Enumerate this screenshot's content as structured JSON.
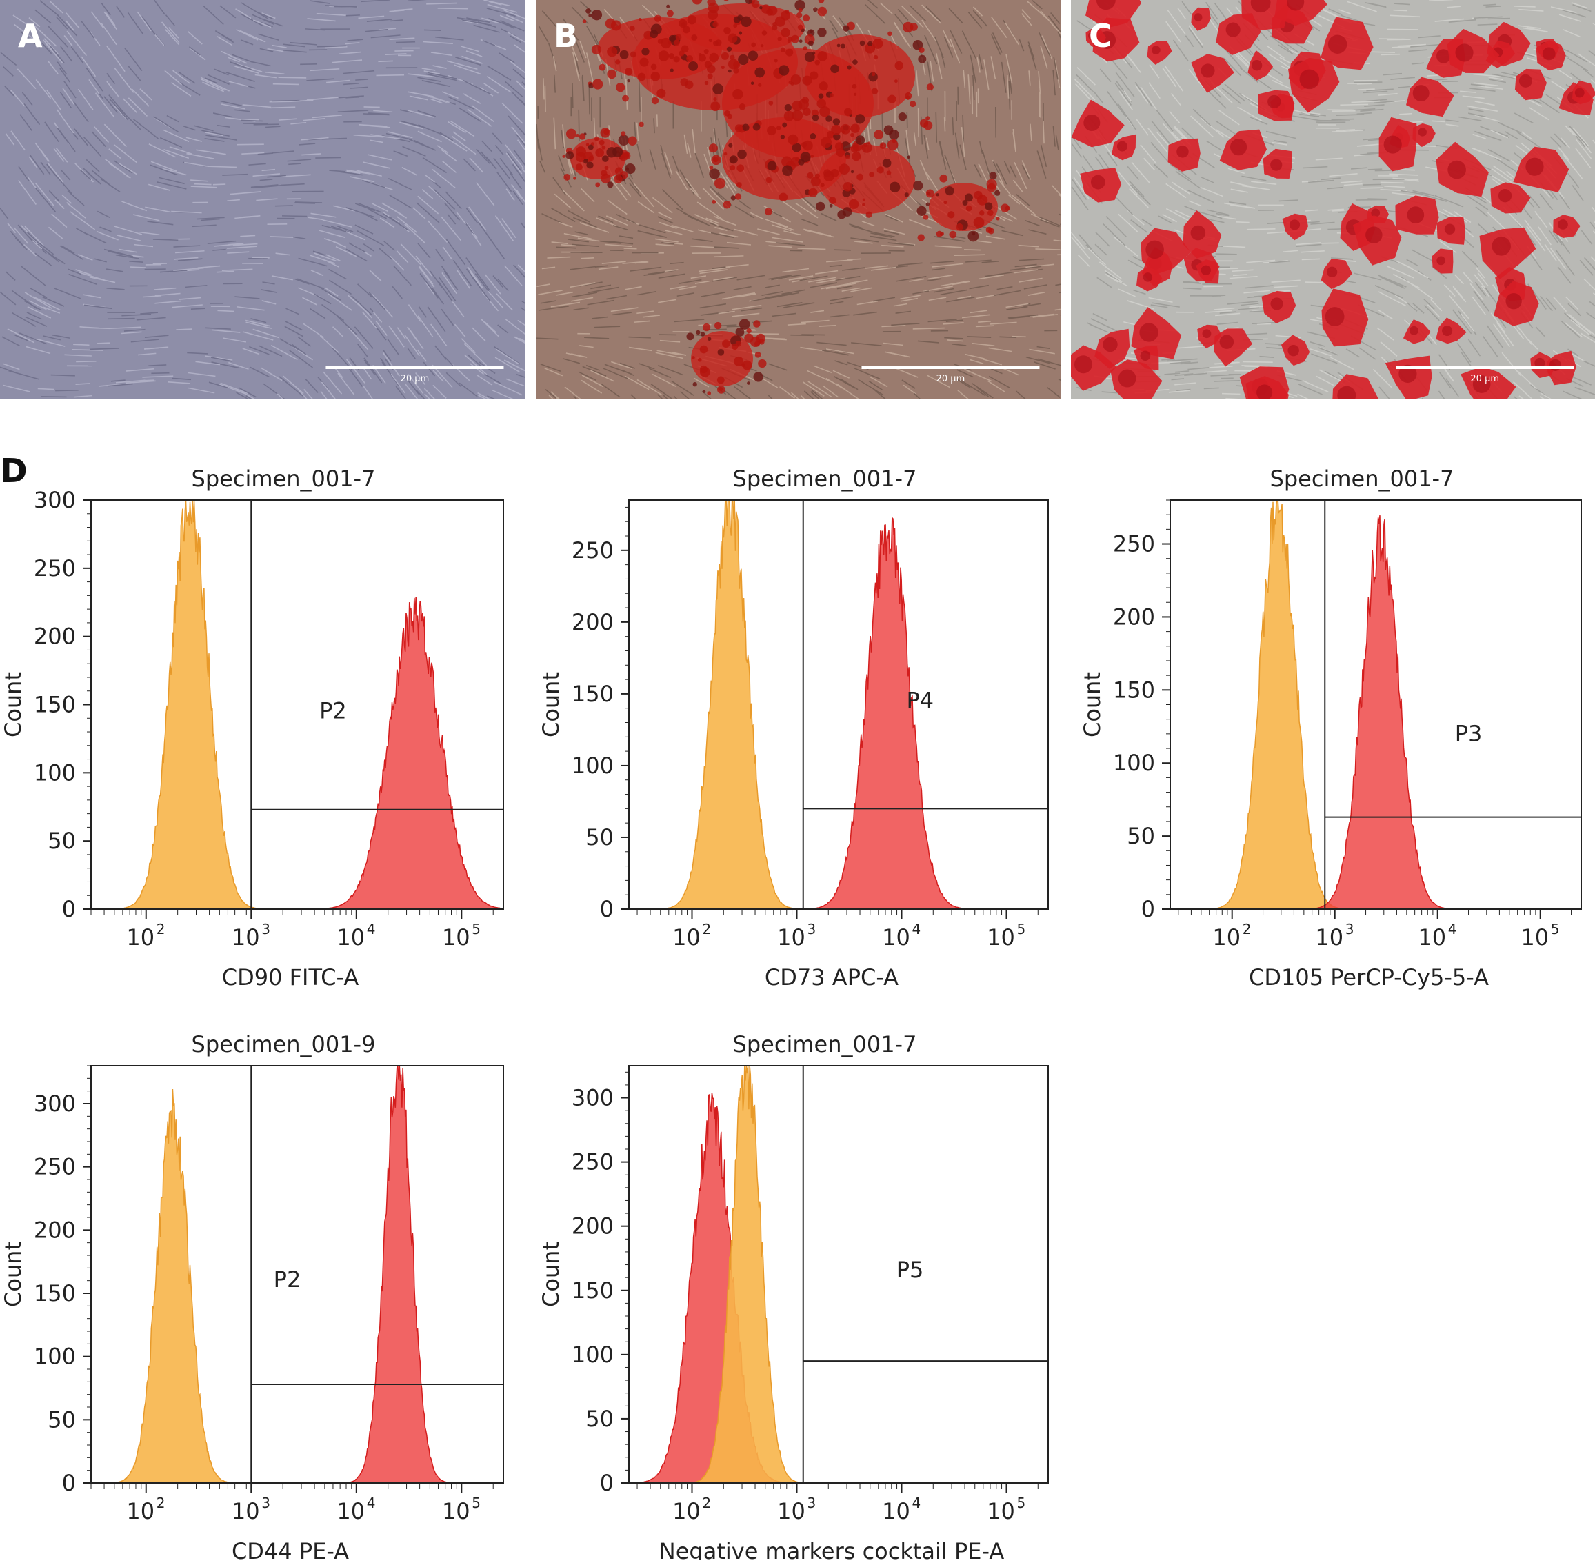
{
  "photos": [
    {
      "letter": "A",
      "scale_text": "20 µm",
      "bg": "#8e8ea8",
      "stain": "none"
    },
    {
      "letter": "B",
      "scale_text": "20 µm",
      "bg": "#9a7b6e",
      "stain": "#c8201a"
    },
    {
      "letter": "C",
      "scale_text": "20 µm",
      "bg": "#b9b9b5",
      "stain": "#d81e26"
    }
  ],
  "panel_d_letter": "D",
  "colors": {
    "negative": "#f7b54a",
    "positive": "#ee3d3d",
    "overlap": "#f5822a"
  },
  "chart_data": [
    {
      "type": "histogram",
      "title": "Specimen_001-7",
      "xlabel": "CD90 FITC-A",
      "ylabel": "Count",
      "x_scale": "log",
      "xlim": [
        30,
        250000
      ],
      "ylim": [
        0,
        300
      ],
      "yticks": [
        0,
        50,
        100,
        150,
        200,
        250,
        300
      ],
      "xticks": [
        {
          "base": "10",
          "exp": "2",
          "value": 100
        },
        {
          "base": "10",
          "exp": "3",
          "value": 1000
        },
        {
          "base": "10",
          "exp": "4",
          "value": 10000
        },
        {
          "base": "10",
          "exp": "5",
          "value": 100000
        }
      ],
      "series": [
        {
          "role": "negative",
          "center": 260,
          "spread": 0.18,
          "peak": 295
        },
        {
          "role": "positive",
          "center": 36000,
          "spread": 0.24,
          "peak": 215
        }
      ],
      "gate": {
        "label": "P2",
        "x": 1000,
        "y": 73,
        "label_pos": [
          6000,
          140
        ]
      }
    },
    {
      "type": "histogram",
      "title": "Specimen_001-7",
      "xlabel": "CD73 APC-A",
      "ylabel": "Count",
      "x_scale": "log",
      "xlim": [
        25,
        250000
      ],
      "ylim": [
        0,
        285
      ],
      "yticks": [
        0,
        50,
        100,
        150,
        200,
        250
      ],
      "xticks": [
        {
          "base": "10",
          "exp": "2",
          "value": 100
        },
        {
          "base": "10",
          "exp": "3",
          "value": 1000
        },
        {
          "base": "10",
          "exp": "4",
          "value": 10000
        },
        {
          "base": "10",
          "exp": "5",
          "value": 100000
        }
      ],
      "series": [
        {
          "role": "negative",
          "center": 230,
          "spread": 0.17,
          "peak": 280
        },
        {
          "role": "positive",
          "center": 7500,
          "spread": 0.2,
          "peak": 265
        }
      ],
      "gate": {
        "label": "P4",
        "x": 1150,
        "y": 70,
        "label_pos": [
          15000,
          140
        ]
      }
    },
    {
      "type": "histogram",
      "title": "Specimen_001-7",
      "xlabel": "CD105 PerCP-Cy5-5-A",
      "ylabel": "Count",
      "x_scale": "log",
      "xlim": [
        25,
        250000
      ],
      "ylim": [
        0,
        280
      ],
      "yticks": [
        0,
        50,
        100,
        150,
        200,
        250
      ],
      "xticks": [
        {
          "base": "10",
          "exp": "2",
          "value": 100
        },
        {
          "base": "10",
          "exp": "3",
          "value": 1000
        },
        {
          "base": "10",
          "exp": "4",
          "value": 10000
        },
        {
          "base": "10",
          "exp": "5",
          "value": 100000
        }
      ],
      "series": [
        {
          "role": "negative",
          "center": 280,
          "spread": 0.17,
          "peak": 275
        },
        {
          "role": "positive",
          "center": 2800,
          "spread": 0.18,
          "peak": 255
        }
      ],
      "gate": {
        "label": "P3",
        "x": 800,
        "y": 63,
        "label_pos": [
          20000,
          115
        ]
      }
    },
    {
      "type": "histogram",
      "title": "Specimen_001-9",
      "xlabel": "CD44 PE-A",
      "ylabel": "Count",
      "x_scale": "log",
      "xlim": [
        30,
        250000
      ],
      "ylim": [
        0,
        330
      ],
      "yticks": [
        0,
        50,
        100,
        150,
        200,
        250,
        300
      ],
      "xticks": [
        {
          "base": "10",
          "exp": "2",
          "value": 100
        },
        {
          "base": "10",
          "exp": "3",
          "value": 1000
        },
        {
          "base": "10",
          "exp": "4",
          "value": 10000
        },
        {
          "base": "10",
          "exp": "5",
          "value": 100000
        }
      ],
      "series": [
        {
          "role": "negative",
          "center": 180,
          "spread": 0.15,
          "peak": 290
        },
        {
          "role": "positive",
          "center": 25000,
          "spread": 0.13,
          "peak": 325
        }
      ],
      "gate": {
        "label": "P2",
        "x": 1000,
        "y": 78,
        "label_pos": [
          2200,
          155
        ]
      }
    },
    {
      "type": "histogram",
      "title": "Specimen_001-7",
      "xlabel": "Negative markers cocktail PE-A",
      "ylabel": "Count",
      "x_scale": "log",
      "xlim": [
        25,
        250000
      ],
      "ylim": [
        0,
        325
      ],
      "yticks": [
        0,
        50,
        100,
        150,
        200,
        250,
        300
      ],
      "xticks": [
        {
          "base": "10",
          "exp": "2",
          "value": 100
        },
        {
          "base": "10",
          "exp": "3",
          "value": 1000
        },
        {
          "base": "10",
          "exp": "4",
          "value": 10000
        },
        {
          "base": "10",
          "exp": "5",
          "value": 100000
        }
      ],
      "series": [
        {
          "role": "positive",
          "center": 155,
          "spread": 0.19,
          "peak": 285
        },
        {
          "role": "negative",
          "center": 330,
          "spread": 0.14,
          "peak": 320
        }
      ],
      "gate": {
        "label": "P5",
        "x": 1150,
        "y": 95,
        "label_pos": [
          12000,
          160
        ]
      }
    }
  ]
}
